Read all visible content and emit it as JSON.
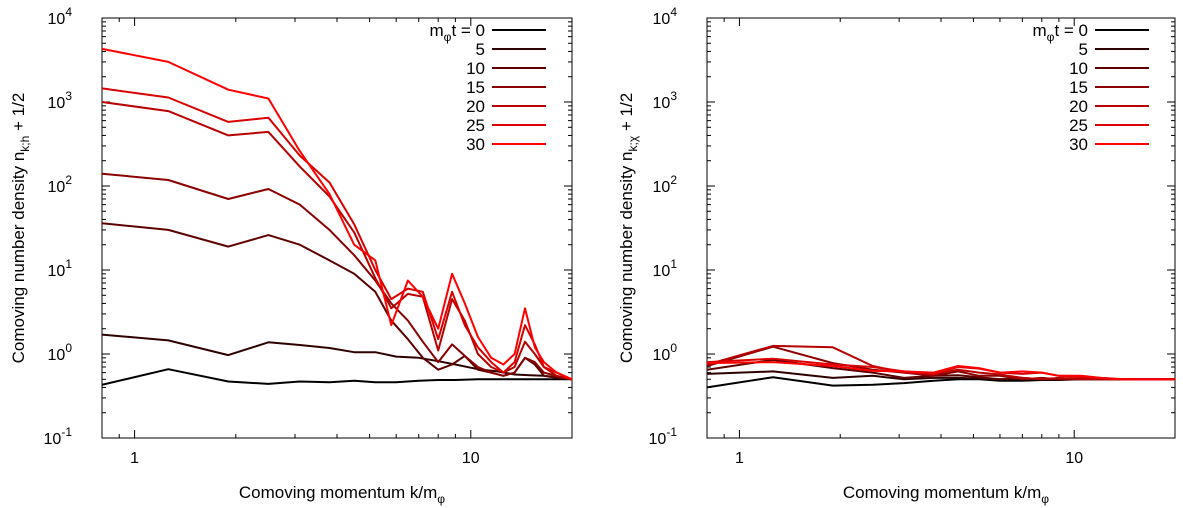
{
  "chart_data": [
    {
      "type": "line",
      "panel": "left",
      "xscale": "log",
      "yscale": "log",
      "xlim": [
        0.8,
        20
      ],
      "ylim": [
        0.1,
        10000
      ],
      "xlabel": {
        "main": "Comoving momentum k/m",
        "sub": "φ"
      },
      "ylabel": {
        "main": "Comoving number density n",
        "sub": "k;h",
        "tail": " + 1/2"
      },
      "xticks": [
        {
          "value": 1,
          "label": "1"
        },
        {
          "value": 10,
          "label": "10"
        }
      ],
      "yticks": [
        {
          "value": 0.1,
          "base": "10",
          "exp": "-1"
        },
        {
          "value": 1,
          "base": "10",
          "exp": "0"
        },
        {
          "value": 10,
          "base": "10",
          "exp": "1"
        },
        {
          "value": 100,
          "base": "10",
          "exp": "2"
        },
        {
          "value": 1000,
          "base": "10",
          "exp": "3"
        },
        {
          "value": 10000,
          "base": "10",
          "exp": "4"
        }
      ],
      "legend_position": "top-right",
      "series": [
        {
          "name": "m_φ t = 0",
          "label": "0",
          "color": "#000000",
          "x": [
            0.8,
            1.26,
            1.9,
            2.5,
            3.1,
            3.8,
            4.5,
            5.2,
            6.0,
            7.0,
            8.0,
            9.0,
            10.5,
            12,
            13.5,
            15,
            16.5,
            18,
            20
          ],
          "y": [
            0.43,
            0.66,
            0.47,
            0.44,
            0.47,
            0.46,
            0.48,
            0.46,
            0.46,
            0.48,
            0.49,
            0.49,
            0.5,
            0.5,
            0.5,
            0.5,
            0.5,
            0.5,
            0.5
          ]
        },
        {
          "name": "5",
          "label": "5",
          "color": "#2e0000",
          "x": [
            0.8,
            1.26,
            1.9,
            2.5,
            3.1,
            3.8,
            4.5,
            5.2,
            6.0,
            7.0,
            8.0,
            9.0,
            10.5,
            12,
            13.5,
            15,
            16.5,
            18,
            20
          ],
          "y": [
            1.7,
            1.45,
            0.97,
            1.38,
            1.28,
            1.18,
            1.05,
            1.05,
            0.93,
            0.9,
            0.82,
            0.75,
            0.66,
            0.62,
            0.57,
            0.56,
            0.55,
            0.53,
            0.5
          ]
        },
        {
          "name": "10",
          "label": "10",
          "color": "#5c0000",
          "x": [
            0.8,
            1.26,
            1.9,
            2.5,
            3.1,
            3.8,
            4.5,
            5.2,
            5.8,
            6.5,
            7.2,
            8.0,
            8.8,
            9.6,
            10.5,
            11.5,
            12.5,
            13.5,
            14.5,
            15.5,
            16.5,
            18,
            20
          ],
          "y": [
            36,
            30,
            19,
            26,
            20,
            13,
            9,
            5.5,
            2.5,
            1.5,
            0.9,
            0.65,
            0.75,
            0.95,
            0.65,
            0.6,
            0.55,
            0.6,
            0.9,
            0.75,
            0.55,
            0.52,
            0.5
          ]
        },
        {
          "name": "15",
          "label": "15",
          "color": "#8b0000",
          "x": [
            0.8,
            1.26,
            1.9,
            2.5,
            3.1,
            3.8,
            4.5,
            5.2,
            5.8,
            6.5,
            7.2,
            8.0,
            8.8,
            9.6,
            10.5,
            11.5,
            12.5,
            13.5,
            14.5,
            15.5,
            16.5,
            18,
            20
          ],
          "y": [
            140,
            118,
            70,
            92,
            60,
            30,
            15,
            7.5,
            4,
            2.5,
            1.4,
            0.8,
            1.3,
            0.95,
            0.7,
            0.6,
            0.55,
            0.6,
            0.9,
            0.8,
            0.6,
            0.55,
            0.5
          ]
        },
        {
          "name": "20",
          "label": "20",
          "color": "#b90000",
          "x": [
            0.8,
            1.26,
            1.9,
            2.5,
            3.1,
            3.8,
            4.5,
            5.2,
            5.8,
            6.5,
            7.2,
            8.0,
            8.8,
            9.6,
            10.5,
            11.5,
            12.5,
            13.5,
            14.5,
            15.5,
            16.5,
            18,
            20
          ],
          "y": [
            1000,
            780,
            400,
            440,
            170,
            75,
            28,
            8,
            3.5,
            5.2,
            4.8,
            1.1,
            4.5,
            2.5,
            1.0,
            0.7,
            0.6,
            0.7,
            1.4,
            1.0,
            0.7,
            0.55,
            0.5
          ]
        },
        {
          "name": "25",
          "label": "25",
          "color": "#d80000",
          "x": [
            0.8,
            1.26,
            1.9,
            2.5,
            3.1,
            3.8,
            4.5,
            5.2,
            5.8,
            6.5,
            7.2,
            8.0,
            8.8,
            9.6,
            10.5,
            11.5,
            12.5,
            13.5,
            14.5,
            15.5,
            16.5,
            18,
            20
          ],
          "y": [
            1450,
            1130,
            580,
            650,
            230,
            110,
            35,
            10,
            4.5,
            6,
            5.5,
            1.5,
            5.5,
            2.2,
            1.2,
            0.8,
            0.6,
            0.8,
            2.2,
            1.3,
            0.7,
            0.6,
            0.5
          ]
        },
        {
          "name": "30",
          "label": "30",
          "color": "#ff0000",
          "x": [
            0.8,
            1.26,
            1.9,
            2.5,
            3.1,
            3.8,
            4.5,
            5.2,
            5.8,
            6.5,
            7.2,
            8.0,
            8.8,
            9.6,
            10.5,
            11.5,
            12.5,
            13.5,
            14.5,
            15.5,
            16.5,
            18,
            20
          ],
          "y": [
            4300,
            3000,
            1400,
            1100,
            260,
            80,
            20,
            13,
            2.2,
            7.5,
            4.8,
            2.0,
            9.0,
            4.0,
            1.6,
            0.9,
            0.75,
            1.0,
            3.5,
            1.2,
            0.8,
            0.6,
            0.5
          ]
        }
      ]
    },
    {
      "type": "line",
      "panel": "right",
      "xscale": "log",
      "yscale": "log",
      "xlim": [
        0.8,
        20
      ],
      "ylim": [
        0.1,
        10000
      ],
      "xlabel": {
        "main": "Comoving momentum k/m",
        "sub": "φ"
      },
      "ylabel": {
        "main": "Comoving number density n",
        "sub": "k;χ",
        "tail": " + 1/2"
      },
      "xticks": [
        {
          "value": 1,
          "label": "1"
        },
        {
          "value": 10,
          "label": "10"
        }
      ],
      "yticks": [
        {
          "value": 0.1,
          "base": "10",
          "exp": "-1"
        },
        {
          "value": 1,
          "base": "10",
          "exp": "0"
        },
        {
          "value": 10,
          "base": "10",
          "exp": "1"
        },
        {
          "value": 100,
          "base": "10",
          "exp": "2"
        },
        {
          "value": 1000,
          "base": "10",
          "exp": "3"
        },
        {
          "value": 10000,
          "base": "10",
          "exp": "4"
        }
      ],
      "legend_position": "top-right",
      "series": [
        {
          "name": "m_φ t = 0",
          "label": "0",
          "color": "#000000",
          "x": [
            0.8,
            1.26,
            1.9,
            2.5,
            3.1,
            3.8,
            4.5,
            5.2,
            6.0,
            7.0,
            8.0,
            9.0,
            10.5,
            12,
            14,
            16,
            18,
            20
          ],
          "y": [
            0.4,
            0.53,
            0.42,
            0.43,
            0.45,
            0.48,
            0.5,
            0.5,
            0.48,
            0.48,
            0.49,
            0.49,
            0.5,
            0.5,
            0.5,
            0.5,
            0.5,
            0.5
          ]
        },
        {
          "name": "5",
          "label": "5",
          "color": "#2e0000",
          "x": [
            0.8,
            1.26,
            1.9,
            2.5,
            3.1,
            3.8,
            4.5,
            5.2,
            6.0,
            7.0,
            8.0,
            9.0,
            10.5,
            12,
            14,
            16,
            18,
            20
          ],
          "y": [
            0.58,
            0.62,
            0.52,
            0.55,
            0.5,
            0.52,
            0.52,
            0.51,
            0.5,
            0.5,
            0.5,
            0.5,
            0.5,
            0.5,
            0.5,
            0.5,
            0.5,
            0.5
          ]
        },
        {
          "name": "10",
          "label": "10",
          "color": "#5c0000",
          "x": [
            0.8,
            1.26,
            1.9,
            2.5,
            3.1,
            3.8,
            4.5,
            5.2,
            6.0,
            7.0,
            8.0,
            9.0,
            10.5,
            12,
            14,
            16,
            18,
            20
          ],
          "y": [
            0.65,
            0.85,
            0.68,
            0.6,
            0.52,
            0.55,
            0.56,
            0.53,
            0.5,
            0.52,
            0.5,
            0.5,
            0.51,
            0.5,
            0.5,
            0.5,
            0.5,
            0.5
          ]
        },
        {
          "name": "15",
          "label": "15",
          "color": "#8b0000",
          "x": [
            0.8,
            1.26,
            1.9,
            2.5,
            3.1,
            3.8,
            4.5,
            5.2,
            6.0,
            7.0,
            8.0,
            9.0,
            10.5,
            12,
            14,
            16,
            18,
            20
          ],
          "y": [
            0.72,
            1.22,
            0.78,
            0.65,
            0.6,
            0.55,
            0.62,
            0.55,
            0.55,
            0.5,
            0.52,
            0.5,
            0.5,
            0.5,
            0.5,
            0.5,
            0.5,
            0.5
          ]
        },
        {
          "name": "20",
          "label": "20",
          "color": "#b90000",
          "x": [
            0.8,
            1.26,
            1.9,
            2.5,
            3.1,
            3.8,
            4.5,
            5.2,
            6.0,
            7.0,
            8.0,
            9.0,
            10.5,
            12,
            14,
            16,
            18,
            20
          ],
          "y": [
            0.75,
            1.25,
            1.2,
            0.72,
            0.6,
            0.58,
            0.65,
            0.6,
            0.57,
            0.52,
            0.5,
            0.52,
            0.5,
            0.5,
            0.5,
            0.5,
            0.5,
            0.5
          ]
        },
        {
          "name": "25",
          "label": "25",
          "color": "#d80000",
          "x": [
            0.8,
            1.26,
            1.9,
            2.5,
            3.1,
            3.8,
            4.5,
            5.2,
            6.0,
            7.0,
            8.0,
            9.0,
            10.5,
            12,
            14,
            16,
            18,
            20
          ],
          "y": [
            0.8,
            0.88,
            0.75,
            0.7,
            0.62,
            0.58,
            0.7,
            0.67,
            0.6,
            0.58,
            0.6,
            0.55,
            0.53,
            0.52,
            0.5,
            0.5,
            0.5,
            0.5
          ]
        },
        {
          "name": "30",
          "label": "30",
          "color": "#ff0000",
          "x": [
            0.8,
            1.26,
            1.9,
            2.5,
            3.1,
            3.8,
            4.5,
            5.2,
            6.0,
            7.0,
            8.0,
            9.0,
            10.5,
            12,
            14,
            16,
            18,
            20
          ],
          "y": [
            0.78,
            0.8,
            0.72,
            0.63,
            0.62,
            0.6,
            0.72,
            0.68,
            0.6,
            0.62,
            0.6,
            0.55,
            0.55,
            0.52,
            0.5,
            0.5,
            0.5,
            0.5
          ]
        }
      ]
    }
  ]
}
